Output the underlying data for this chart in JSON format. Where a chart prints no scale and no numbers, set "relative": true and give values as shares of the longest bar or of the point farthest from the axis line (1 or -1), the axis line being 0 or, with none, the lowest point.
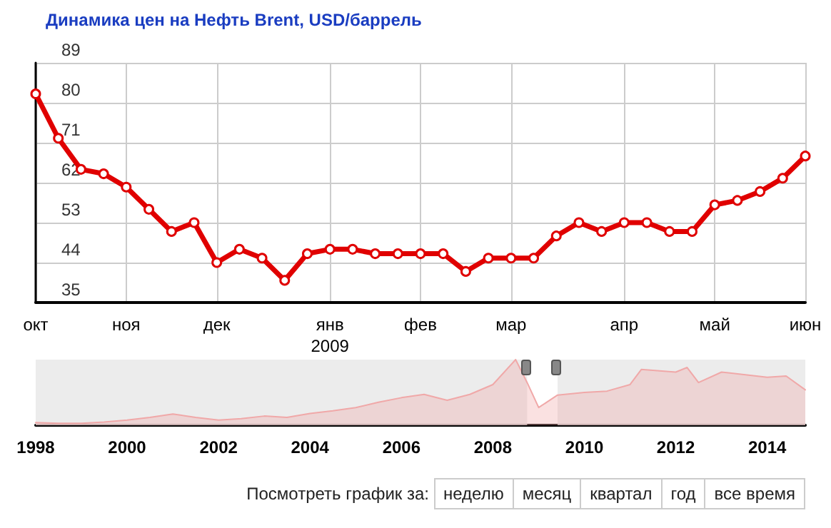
{
  "chart_data": [
    {
      "type": "line",
      "title": "Динамика цен на Нефть Brent, USD/баррель",
      "categories": [
        "окт",
        null,
        null,
        null,
        "ноя",
        null,
        null,
        null,
        "дек",
        null,
        null,
        null,
        null,
        "янв\n2009",
        null,
        null,
        null,
        "фев",
        null,
        null,
        null,
        "мар",
        null,
        null,
        null,
        null,
        "апр",
        null,
        null,
        null,
        "май",
        null,
        null,
        null,
        "июн"
      ],
      "series": [
        {
          "color": "#e00000",
          "values": [
            82,
            72,
            65,
            64,
            61,
            56,
            51,
            53,
            44,
            47,
            45,
            40,
            46,
            47,
            47,
            46,
            46,
            46,
            46,
            42,
            45,
            45,
            45,
            50,
            53,
            51,
            53,
            53,
            51,
            51,
            57,
            58,
            60,
            63,
            68
          ]
        }
      ],
      "ylim": [
        35,
        89
      ],
      "yticks": [
        35,
        44,
        53,
        62,
        71,
        80,
        89
      ],
      "grid": true,
      "marker": "circle",
      "line_style": "solid"
    },
    {
      "type": "area",
      "relative": true,
      "x": [
        "1998-01",
        "1998-07",
        "1999-01",
        "1999-07",
        "2000-01",
        "2000-07",
        "2001-01",
        "2001-07",
        "2002-01",
        "2002-07",
        "2003-01",
        "2003-07",
        "2004-01",
        "2004-07",
        "2005-01",
        "2005-07",
        "2006-01",
        "2006-07",
        "2007-01",
        "2007-07",
        "2008-01",
        "2008-07",
        "2008-10",
        "2009-01",
        "2009-06",
        "2010-01",
        "2010-07",
        "2011-01",
        "2011-04",
        "2012-01",
        "2012-04",
        "2012-07",
        "2013-01",
        "2014-01",
        "2014-06",
        "2014-11"
      ],
      "series": [
        {
          "color": "#f0a8a8",
          "values": [
            0.04,
            0.03,
            0.03,
            0.05,
            0.08,
            0.12,
            0.17,
            0.12,
            0.08,
            0.1,
            0.14,
            0.12,
            0.18,
            0.22,
            0.27,
            0.35,
            0.42,
            0.47,
            0.38,
            0.47,
            0.62,
            1,
            0.65,
            0.27,
            0.46,
            0.5,
            0.52,
            0.62,
            0.85,
            0.81,
            0.88,
            0.65,
            0.81,
            0.73,
            0.75,
            0.54
          ]
        }
      ],
      "xlim": [
        "1998-01-01",
        "2014-11-01"
      ],
      "xticks": [
        "1998",
        "2000",
        "2002",
        "2004",
        "2006",
        "2008",
        "2010",
        "2012",
        "2014"
      ],
      "bands": [
        {
          "axis": "x",
          "from": "1998-01-01",
          "to": "2008-10-01",
          "color": "#e6e6e6"
        },
        {
          "axis": "x",
          "from": "2009-06-01",
          "to": "2014-11-01",
          "color": "#e6e6e6"
        }
      ],
      "grid": false,
      "annotations": [
        "Посмотреть график за:",
        "неделю",
        "месяц",
        "квартал",
        "год",
        "все время"
      ]
    }
  ]
}
